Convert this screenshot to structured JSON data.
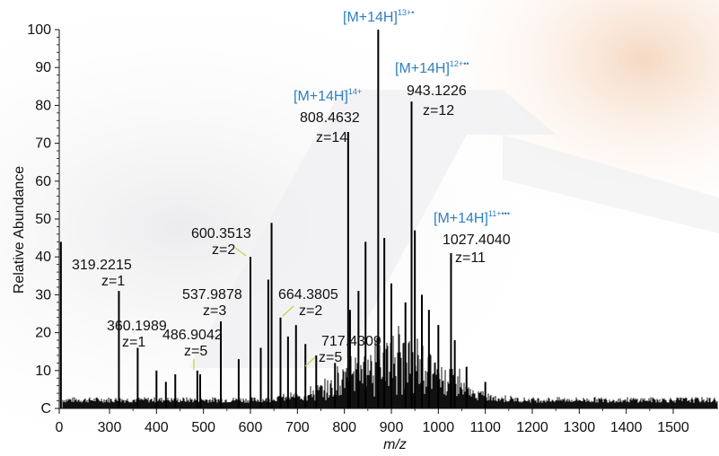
{
  "chart_data": {
    "type": "line",
    "title": "",
    "xlabel": "m/z",
    "ylabel": "Relative Abundance",
    "xlim": [
      0,
      1550
    ],
    "ylim": [
      0,
      100
    ],
    "x_ticks": [
      "0",
      "300",
      "400",
      "500",
      "600",
      "700",
      "800",
      "900",
      "1000",
      "1100",
      "1200",
      "1300",
      "1400",
      "1500"
    ],
    "y_ticks": [
      "C",
      "10",
      "20",
      "30",
      "40",
      "50",
      "60",
      "70",
      "80",
      "90",
      "100"
    ],
    "colors": {
      "spectrum": "#000000",
      "ion_label": "#2f7fc1",
      "leader": "#c8d23a"
    },
    "series": [
      {
        "x": [
          10,
          320,
          360,
          400,
          420,
          440,
          487,
          493,
          537,
          575,
          600,
          622,
          638,
          645,
          664,
          680,
          697,
          717,
          740,
          780,
          808,
          812,
          830,
          845,
          872,
          885,
          900,
          930,
          943,
          950,
          965,
          980,
          1000,
          1027,
          1035,
          1060,
          1100
        ],
        "y": [
          44,
          31,
          16,
          10,
          7,
          9,
          10,
          9,
          23,
          13,
          40,
          16,
          34,
          49,
          24,
          19,
          22,
          17,
          14,
          12,
          73,
          26,
          31,
          44,
          100,
          45,
          33,
          28,
          81,
          47,
          30,
          26,
          22,
          41,
          18,
          11,
          7
        ]
      }
    ],
    "annotations": [
      {
        "id": "a1",
        "mz": "319.2215",
        "z": "z=1"
      },
      {
        "id": "a2",
        "mz": "360.1989",
        "z": "z=1"
      },
      {
        "id": "a3",
        "mz": "486.9042",
        "z": "z=5"
      },
      {
        "id": "a4",
        "mz": "537.9878",
        "z": "z=3"
      },
      {
        "id": "a5",
        "mz": "600.3513",
        "z": "z=2"
      },
      {
        "id": "a6",
        "mz": "664.3805",
        "z": "z=2"
      },
      {
        "id": "a7",
        "mz": "717.4309",
        "z": "z=5"
      },
      {
        "id": "a8",
        "ion": "[M+14H]",
        "ion_charge": "14+",
        "mz": "808.4632",
        "z": "z=14"
      },
      {
        "id": "a9",
        "ion": "[M+14H]",
        "ion_charge": "13+•",
        "mz": "",
        "z": ""
      },
      {
        "id": "a10",
        "ion": "[M+14H]",
        "ion_charge": "12+••",
        "mz": "943.1226",
        "z": "z=12"
      },
      {
        "id": "a11",
        "ion": "[M+14H]",
        "ion_charge": "11+•••",
        "mz": "1027.4040",
        "z": "z=11"
      }
    ]
  }
}
